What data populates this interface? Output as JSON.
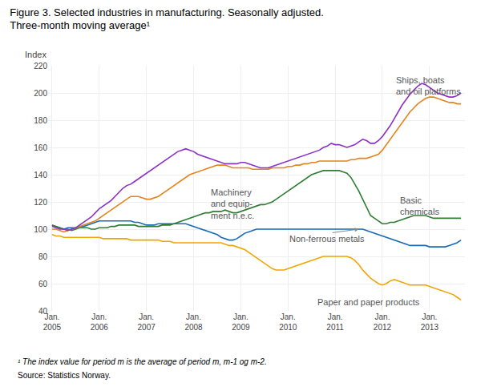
{
  "chart_data": {
    "type": "line",
    "title": "Figure 3. Selected industries in manufacturing. Seasonally adjusted.",
    "subtitle": "Three-month moving average¹",
    "ylabel": "Index",
    "annotations": [
      "¹ The index value for period m is the average of period m, m-1 og m-2.",
      "Source: Statistics Norway."
    ],
    "categories": [
      "Jan.\n2005",
      null,
      null,
      null,
      null,
      null,
      null,
      null,
      null,
      null,
      null,
      null,
      "Jan.\n2006",
      null,
      null,
      null,
      null,
      null,
      null,
      null,
      null,
      null,
      null,
      null,
      "Jan.\n2007",
      null,
      null,
      null,
      null,
      null,
      null,
      null,
      null,
      null,
      null,
      null,
      "Jan.\n2008",
      null,
      null,
      null,
      null,
      null,
      null,
      null,
      null,
      null,
      null,
      null,
      "Jan.\n2009",
      null,
      null,
      null,
      null,
      null,
      null,
      null,
      null,
      null,
      null,
      null,
      "Jan.\n2010",
      null,
      null,
      null,
      null,
      null,
      null,
      null,
      null,
      null,
      null,
      null,
      "Jan.\n2011",
      null,
      null,
      null,
      null,
      null,
      null,
      null,
      null,
      null,
      null,
      null,
      "Jan.\n2012",
      null,
      null,
      null,
      null,
      null,
      null,
      null,
      null,
      null,
      null,
      null,
      "Jan.\n2013",
      null,
      null,
      null,
      null,
      null,
      null,
      null,
      null
    ],
    "ylim": [
      40,
      220
    ],
    "yticks": [
      40,
      60,
      80,
      100,
      120,
      140,
      160,
      180,
      200,
      220
    ],
    "grid": true,
    "series": [
      {
        "name": "Paper and paper products",
        "color": "#F0A500",
        "values": [
          96,
          95,
          95,
          94,
          94,
          94,
          94,
          94,
          94,
          94,
          94,
          94,
          94,
          93,
          93,
          93,
          93,
          93,
          93,
          93,
          92,
          92,
          92,
          92,
          92,
          92,
          92,
          92,
          91,
          91,
          91,
          90,
          90,
          90,
          90,
          90,
          90,
          90,
          90,
          90,
          90,
          90,
          90,
          90,
          89,
          88,
          88,
          87,
          86,
          85,
          83,
          81,
          79,
          77,
          75,
          73,
          71,
          70,
          70,
          70,
          71,
          72,
          73,
          74,
          75,
          76,
          77,
          78,
          79,
          80,
          80,
          80,
          80,
          80,
          80,
          80,
          79,
          77,
          74,
          70,
          67,
          64,
          62,
          60,
          59,
          60,
          62,
          63,
          62,
          61,
          60,
          59,
          59,
          59,
          59,
          59,
          58,
          57,
          56,
          55,
          54,
          53,
          52,
          50,
          48
        ]
      },
      {
        "name": "Non-ferrous metals",
        "color": "#1A6BB5",
        "values": [
          103,
          102,
          101,
          100,
          101,
          101,
          101,
          102,
          102,
          103,
          104,
          105,
          106,
          106,
          106,
          106,
          106,
          106,
          106,
          106,
          106,
          105,
          105,
          104,
          103,
          103,
          103,
          104,
          104,
          104,
          104,
          104,
          104,
          104,
          104,
          103,
          102,
          101,
          100,
          99,
          98,
          97,
          96,
          94,
          93,
          92,
          92,
          93,
          95,
          97,
          98,
          99,
          100,
          100,
          100,
          100,
          100,
          100,
          100,
          100,
          100,
          100,
          100,
          100,
          100,
          100,
          100,
          100,
          100,
          100,
          100,
          100,
          100,
          100,
          100,
          100,
          100,
          100,
          100,
          100,
          99,
          98,
          97,
          96,
          95,
          94,
          93,
          92,
          91,
          90,
          89,
          88,
          88,
          88,
          88,
          88,
          87,
          87,
          87,
          87,
          87,
          88,
          89,
          90,
          92
        ]
      },
      {
        "name": "Basic\nchemicals",
        "color": "#2E7D32",
        "values": [
          103,
          102,
          101,
          100,
          100,
          99,
          100,
          101,
          101,
          101,
          100,
          100,
          101,
          101,
          101,
          102,
          102,
          103,
          103,
          103,
          103,
          103,
          102,
          102,
          102,
          102,
          102,
          102,
          103,
          103,
          103,
          104,
          105,
          106,
          107,
          108,
          109,
          110,
          111,
          112,
          112,
          113,
          113,
          113,
          114,
          113,
          112,
          112,
          113,
          114,
          115,
          116,
          117,
          118,
          118,
          119,
          120,
          122,
          124,
          126,
          128,
          130,
          132,
          134,
          136,
          138,
          140,
          141,
          142,
          143,
          143,
          143,
          143,
          143,
          142,
          141,
          138,
          133,
          128,
          122,
          116,
          110,
          108,
          106,
          104,
          104,
          105,
          105,
          106,
          107,
          108,
          109,
          110,
          110,
          110,
          110,
          109,
          108,
          108,
          108,
          108,
          108,
          108,
          108,
          108
        ]
      },
      {
        "name": "Machinery\nand equip-\nment n.e.c.",
        "color": "#E8821A",
        "values": [
          100,
          100,
          99,
          98,
          99,
          100,
          101,
          102,
          103,
          104,
          105,
          106,
          108,
          110,
          112,
          114,
          116,
          118,
          120,
          122,
          124,
          124,
          124,
          123,
          122,
          122,
          123,
          124,
          126,
          128,
          130,
          132,
          134,
          136,
          138,
          140,
          141,
          142,
          143,
          144,
          145,
          146,
          147,
          147,
          147,
          146,
          145,
          145,
          145,
          145,
          145,
          144,
          144,
          144,
          144,
          144,
          145,
          145,
          145,
          145,
          146,
          146,
          147,
          147,
          148,
          148,
          149,
          149,
          150,
          150,
          150,
          150,
          150,
          150,
          150,
          150,
          151,
          151,
          152,
          152,
          152,
          153,
          154,
          155,
          158,
          162,
          166,
          170,
          174,
          178,
          182,
          186,
          189,
          192,
          194,
          196,
          197,
          197,
          196,
          195,
          194,
          193,
          193,
          192,
          192
        ]
      },
      {
        "name": "Ships, boats\nand oil platforms",
        "color": "#8B2FC9",
        "values": [
          102,
          101,
          100,
          100,
          99,
          100,
          101,
          103,
          105,
          107,
          109,
          112,
          115,
          117,
          119,
          121,
          124,
          127,
          130,
          132,
          133,
          135,
          137,
          139,
          141,
          143,
          145,
          147,
          149,
          151,
          153,
          155,
          157,
          158,
          159,
          158,
          157,
          155,
          154,
          153,
          152,
          151,
          150,
          149,
          148,
          148,
          148,
          148,
          149,
          149,
          148,
          147,
          146,
          145,
          145,
          145,
          146,
          147,
          148,
          149,
          150,
          151,
          152,
          153,
          154,
          155,
          156,
          157,
          158,
          160,
          161,
          163,
          162,
          162,
          161,
          160,
          161,
          162,
          164,
          166,
          165,
          163,
          163,
          165,
          168,
          172,
          176,
          181,
          186,
          191,
          195,
          199,
          202,
          205,
          207,
          206,
          204,
          202,
          200,
          199,
          198,
          197,
          197,
          198,
          200
        ]
      }
    ]
  }
}
